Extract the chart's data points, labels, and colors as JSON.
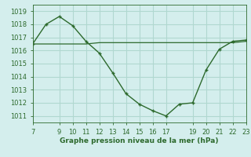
{
  "x": [
    7,
    8,
    9,
    10,
    11,
    12,
    13,
    14,
    15,
    16,
    17,
    18,
    19,
    20,
    21,
    22,
    23
  ],
  "y_curve": [
    1016.5,
    1018.0,
    1018.6,
    1017.9,
    1016.7,
    1015.8,
    1014.3,
    1012.7,
    1011.9,
    1011.4,
    1011.0,
    1011.9,
    1012.0,
    1014.5,
    1016.1,
    1016.7,
    1016.8
  ],
  "y_flat": [
    1016.5,
    1016.5,
    1016.5,
    1016.5,
    1016.5,
    1016.6,
    1016.6,
    1016.6,
    1016.6,
    1016.6,
    1016.6,
    1016.6,
    1016.6,
    1016.6,
    1016.6,
    1016.6,
    1016.7
  ],
  "line_color": "#2d6a2d",
  "bg_color": "#d4eeed",
  "grid_color": "#b0d8d0",
  "xlabel": "Graphe pression niveau de la mer (hPa)",
  "xlim": [
    7,
    23
  ],
  "ylim": [
    1010.5,
    1019.5
  ],
  "xticks": [
    7,
    9,
    10,
    11,
    12,
    13,
    14,
    15,
    16,
    17,
    19,
    20,
    21,
    22,
    23
  ],
  "yticks": [
    1011,
    1012,
    1013,
    1014,
    1015,
    1016,
    1017,
    1018,
    1019
  ]
}
